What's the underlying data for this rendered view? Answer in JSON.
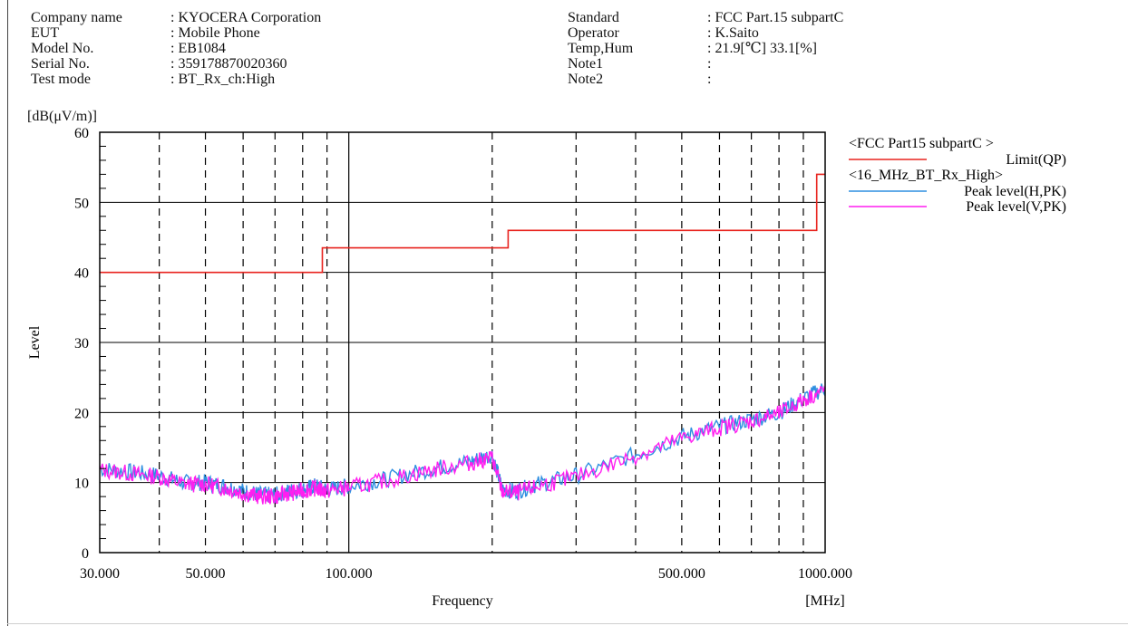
{
  "header": {
    "left": [
      {
        "label": "Company name",
        "value": ": KYOCERA Corporation"
      },
      {
        "label": "EUT",
        "value": ": Mobile Phone"
      },
      {
        "label": "Model No.",
        "value": ": EB1084"
      },
      {
        "label": "Serial No.",
        "value": ": 359178870020360"
      },
      {
        "label": "Test mode",
        "value": ": BT_Rx_ch:High"
      }
    ],
    "right": [
      {
        "label": "Standard",
        "value": ": FCC Part.15 subpartC"
      },
      {
        "label": "Operator",
        "value": ": K.Saito"
      },
      {
        "label": "Temp,Hum",
        "value": ": 21.9[℃] 33.1[%]"
      },
      {
        "label": "Note1",
        "value": ":"
      },
      {
        "label": "Note2",
        "value": ":"
      }
    ]
  },
  "chart_data": {
    "type": "line",
    "ylabel": "Level",
    "yunit": "[dB(μV/m)]",
    "xlabel": "Frequency",
    "xunit": "[MHz]",
    "xscale": "log",
    "xlim": [
      30,
      1000
    ],
    "ylim": [
      0,
      60
    ],
    "yticks": [
      0,
      10,
      20,
      30,
      40,
      50,
      60
    ],
    "xtick_labels": [
      {
        "value": 30,
        "label": "30.000"
      },
      {
        "value": 50,
        "label": "50.000"
      },
      {
        "value": 100,
        "label": "100.000"
      },
      {
        "value": 500,
        "label": "500.000"
      },
      {
        "value": 1000,
        "label": "1000.000"
      }
    ],
    "grid": true,
    "legend_position": "right",
    "legend_groups": [
      {
        "title": "<FCC Part15 subpartC >",
        "items": [
          "limit"
        ]
      },
      {
        "title": "<16_MHz_BT_Rx_High>",
        "items": [
          "peak_h",
          "peak_v"
        ]
      }
    ],
    "series": [
      {
        "id": "limit",
        "name": "Limit(QP)",
        "color": "#e8231e",
        "x": [
          30,
          88,
          88,
          216,
          216,
          960,
          960,
          1000
        ],
        "y": [
          40,
          40,
          43.5,
          43.5,
          46,
          46,
          54,
          54
        ]
      },
      {
        "id": "peak_h",
        "name": "Peak level(H,PK)",
        "color": "#2f8fe0",
        "x": [
          30,
          35,
          40,
          45,
          50,
          55,
          60,
          65,
          70,
          75,
          80,
          85,
          90,
          100,
          120,
          150,
          180,
          200,
          210,
          225,
          250,
          300,
          400,
          500,
          600,
          700,
          800,
          900,
          1000
        ],
        "y": [
          12,
          11.5,
          11,
          10,
          10,
          9.5,
          8.8,
          8.3,
          8.2,
          8.8,
          9,
          9.5,
          9,
          9.5,
          10.5,
          12,
          13,
          14,
          9,
          8.8,
          9.8,
          11,
          14,
          16.5,
          18,
          19,
          20,
          22,
          23.5
        ]
      },
      {
        "id": "peak_v",
        "name": "Peak level(V,PK)",
        "color": "#ff1ef0",
        "x": [
          30,
          35,
          40,
          45,
          50,
          55,
          60,
          65,
          70,
          75,
          80,
          85,
          90,
          100,
          120,
          150,
          180,
          200,
          210,
          225,
          250,
          300,
          400,
          500,
          600,
          700,
          800,
          900,
          1000
        ],
        "y": [
          11.8,
          11.3,
          10.8,
          9.8,
          9.8,
          9.2,
          8.5,
          8,
          8,
          8.5,
          8.8,
          9.2,
          8.8,
          9.3,
          10.3,
          11.8,
          12.8,
          13.5,
          8.7,
          8.5,
          9.5,
          10.8,
          13.8,
          16.3,
          17.8,
          18.8,
          19.8,
          21.8,
          23.2
        ]
      }
    ]
  }
}
